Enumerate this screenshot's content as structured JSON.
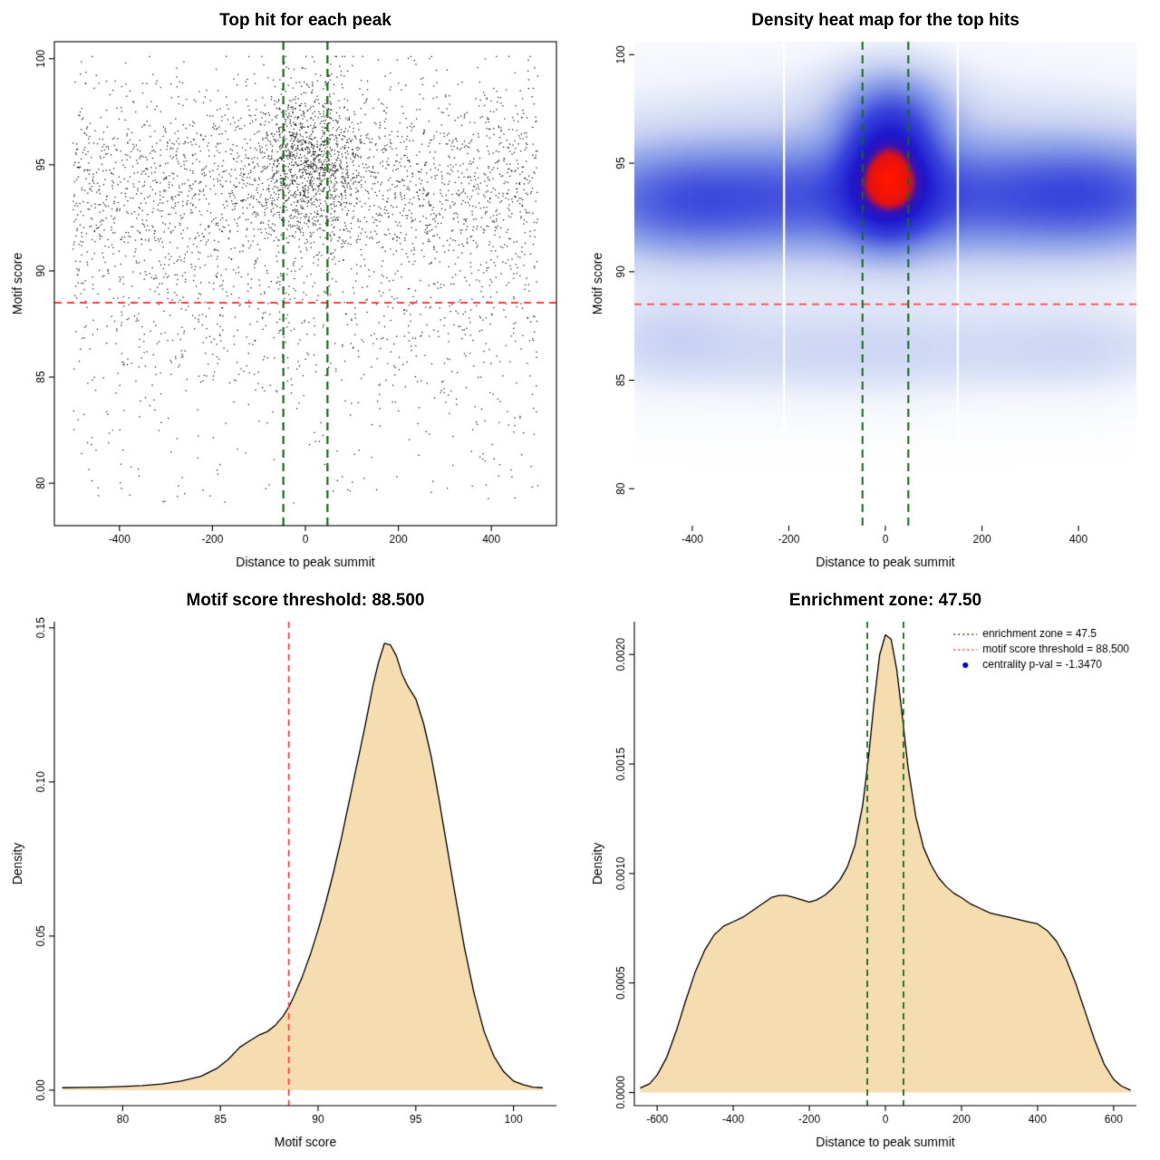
{
  "figure": {
    "background": "#ffffff"
  },
  "chart_data": [
    {
      "type": "scatter",
      "frame": "box",
      "title": "Top hit for each peak",
      "xlabel": "Distance to peak summit",
      "ylabel": "Motif score",
      "xlim": [
        -540,
        540
      ],
      "ylim": [
        78,
        100.8
      ],
      "xticks": [
        {
          "v": -400,
          "l": "-400"
        },
        {
          "v": -200,
          "l": "-200"
        },
        {
          "v": 0,
          "l": "0"
        },
        {
          "v": 200,
          "l": "200"
        },
        {
          "v": 400,
          "l": "400"
        }
      ],
      "yticks": [
        {
          "v": 80,
          "l": "80"
        },
        {
          "v": 85,
          "l": "85"
        },
        {
          "v": 90,
          "l": "90"
        },
        {
          "v": 95,
          "l": "95"
        },
        {
          "v": 100,
          "l": "100"
        }
      ],
      "hline": {
        "y": 88.5,
        "color": "#ff4040",
        "width": 2,
        "dash": [
          8,
          6
        ]
      },
      "vlines": {
        "xs": [
          -47.5,
          47.5
        ],
        "color": "#166b16",
        "width": 2.2,
        "dash": [
          9,
          6
        ]
      },
      "points": {
        "n": 4300,
        "seed": 20240807,
        "size": 1.3,
        "alpha": 0.85,
        "color": "#000000",
        "xclamp": [
          -503,
          503
        ],
        "yclamp": [
          78.6,
          100.1
        ],
        "components": [
          {
            "w": 0.52,
            "x": {
              "dist": "uniform",
              "a": -500,
              "b": 500
            },
            "y": {
              "dist": "normal",
              "m": 93.9,
              "s": 2.4
            }
          },
          {
            "w": 0.25,
            "x": {
              "dist": "normal",
              "m": 5,
              "s": 60
            },
            "y": {
              "dist": "normal",
              "m": 95.2,
              "s": 1.8
            }
          },
          {
            "w": 0.11,
            "x": {
              "dist": "uniform",
              "a": -500,
              "b": 500
            },
            "y": {
              "dist": "normal",
              "m": 87.2,
              "s": 2.1
            }
          },
          {
            "w": 0.12,
            "x": {
              "dist": "uniform",
              "a": -500,
              "b": 500
            },
            "y": {
              "dist": "uniform",
              "a": 79,
              "b": 100
            }
          }
        ]
      }
    },
    {
      "type": "heatmap",
      "frame": "none",
      "title": "Density heat map for the top hits",
      "xlabel": "Distance to peak summit",
      "ylabel": "Motif score",
      "xlim": [
        -520,
        520
      ],
      "ylim": [
        78.3,
        100.6
      ],
      "xticks": [
        {
          "v": -400,
          "l": "-400"
        },
        {
          "v": -200,
          "l": "-200"
        },
        {
          "v": 0,
          "l": "0"
        },
        {
          "v": 200,
          "l": "200"
        },
        {
          "v": 400,
          "l": "400"
        }
      ],
      "yticks": [
        {
          "v": 80,
          "l": "80"
        },
        {
          "v": 85,
          "l": "85"
        },
        {
          "v": 90,
          "l": "90"
        },
        {
          "v": 95,
          "l": "95"
        },
        {
          "v": 100,
          "l": "100"
        }
      ],
      "hline": {
        "y": 88.5,
        "color": "#ff5a5a",
        "width": 1.8,
        "dash": [
          8,
          6
        ]
      },
      "vlines": {
        "xs": [
          -47.5,
          47.5
        ],
        "color": "#166b16",
        "width": 2,
        "dash": [
          9,
          6
        ]
      },
      "gamma": 0.5,
      "white_lines": [
        -210,
        150
      ],
      "kernels": [
        {
          "w": 1.6,
          "mx": 8,
          "sx": 58,
          "my": 94.4,
          "sy": 1.7
        },
        {
          "w": 0.5,
          "mx": 15,
          "sx": 80,
          "my": 97.3,
          "sy": 1.4
        },
        {
          "w": 0.65,
          "mx": 0,
          "sx": 270,
          "my": 93.4,
          "sy": 1.6
        },
        {
          "w": 0.55,
          "mx": -430,
          "sx": 150,
          "my": 93.2,
          "sy": 1.6
        },
        {
          "w": 0.6,
          "mx": 440,
          "sx": 150,
          "my": 93.5,
          "sy": 1.6
        },
        {
          "w": 0.22,
          "mx": 0,
          "sx": 480,
          "my": 94.2,
          "sy": 2.8
        },
        {
          "w": 0.15,
          "mx": -60,
          "sx": 330,
          "my": 86.4,
          "sy": 1.4
        },
        {
          "w": 0.1,
          "mx": -450,
          "sx": 100,
          "my": 87.0,
          "sy": 1.3
        },
        {
          "w": 0.09,
          "mx": 420,
          "sx": 130,
          "my": 86.5,
          "sy": 1.2
        }
      ],
      "colormap": [
        [
          0,
          "#ffffff"
        ],
        [
          0.12,
          "#f2f5fc"
        ],
        [
          0.28,
          "#c6d0f2"
        ],
        [
          0.45,
          "#7e93e6"
        ],
        [
          0.62,
          "#3a46dc"
        ],
        [
          0.78,
          "#1d18cf"
        ],
        [
          0.86,
          "#3812b4"
        ],
        [
          0.92,
          "#e21212"
        ],
        [
          1,
          "#ff1400"
        ]
      ]
    },
    {
      "type": "density",
      "frame": "L",
      "title": "Motif score threshold: 88.500",
      "xlabel": "Motif score",
      "ylabel": "Density",
      "xlim": [
        76.5,
        102.2
      ],
      "ylim": [
        -0.005,
        0.152
      ],
      "xticks": [
        {
          "v": 80,
          "l": "80"
        },
        {
          "v": 85,
          "l": "85"
        },
        {
          "v": 90,
          "l": "90"
        },
        {
          "v": 95,
          "l": "95"
        },
        {
          "v": 100,
          "l": "100"
        }
      ],
      "yticks": [
        {
          "v": 0,
          "l": "0.00"
        },
        {
          "v": 0.05,
          "l": "0.05"
        },
        {
          "v": 0.1,
          "l": "0.10"
        },
        {
          "v": 0.15,
          "l": "0.15"
        }
      ],
      "fill": "#f5ddb0",
      "stroke": "#000000",
      "vlines": {
        "xs": [
          88.5
        ],
        "color": "#ff4040",
        "width": 1.8,
        "dash": [
          7,
          5
        ]
      },
      "curve": {
        "x": [
          76.9,
          78,
          79,
          80,
          81,
          82,
          83,
          84,
          84.8,
          85.4,
          86,
          86.5,
          87,
          87.4,
          87.8,
          88.2,
          88.5,
          88.8,
          89.2,
          89.6,
          90,
          90.4,
          90.8,
          91.2,
          91.6,
          92,
          92.4,
          92.8,
          93.1,
          93.4,
          93.7,
          94,
          94.3,
          94.6,
          95,
          95.4,
          95.8,
          96.2,
          96.6,
          97,
          97.5,
          98,
          98.5,
          99,
          99.5,
          100,
          100.5,
          101,
          101.5
        ],
        "y": [
          0.0008,
          0.0009,
          0.001,
          0.0012,
          0.0015,
          0.002,
          0.003,
          0.0045,
          0.007,
          0.01,
          0.014,
          0.016,
          0.018,
          0.019,
          0.021,
          0.024,
          0.027,
          0.031,
          0.037,
          0.044,
          0.052,
          0.061,
          0.071,
          0.082,
          0.094,
          0.106,
          0.118,
          0.131,
          0.139,
          0.145,
          0.1445,
          0.141,
          0.135,
          0.131,
          0.127,
          0.119,
          0.108,
          0.094,
          0.079,
          0.064,
          0.046,
          0.031,
          0.019,
          0.011,
          0.006,
          0.003,
          0.0018,
          0.001,
          0.0008
        ]
      }
    },
    {
      "type": "density",
      "frame": "L",
      "title": "Enrichment zone: 47.50",
      "xlabel": "Distance to peak summit",
      "ylabel": "Density",
      "xlim": [
        -660,
        660
      ],
      "ylim": [
        -6e-05,
        0.00215
      ],
      "xticks": [
        {
          "v": -600,
          "l": "-600"
        },
        {
          "v": -400,
          "l": "-400"
        },
        {
          "v": -200,
          "l": "-200"
        },
        {
          "v": 0,
          "l": "0"
        },
        {
          "v": 200,
          "l": "200"
        },
        {
          "v": 400,
          "l": "400"
        },
        {
          "v": 600,
          "l": "600"
        }
      ],
      "yticks": [
        {
          "v": 0,
          "l": "0.0000"
        },
        {
          "v": 0.0005,
          "l": "0.0005"
        },
        {
          "v": 0.001,
          "l": "0.0010"
        },
        {
          "v": 0.0015,
          "l": "0.0015"
        },
        {
          "v": 0.002,
          "l": "0.0020"
        }
      ],
      "fill": "#f5ddb0",
      "stroke": "#000000",
      "vlines": {
        "xs": [
          -47.5,
          47.5
        ],
        "color": "#166b16",
        "width": 1.8,
        "dash": [
          7,
          5
        ]
      },
      "legend": [
        {
          "kind": "line",
          "color": "#166b16",
          "label": "enrichment zone = 47.5"
        },
        {
          "kind": "line",
          "color": "#ff4040",
          "label": "motif score threshold = 88.500"
        },
        {
          "kind": "point",
          "color": "#0000cc",
          "label": "centrality p-val = -1.3470"
        }
      ],
      "curve": {
        "x": [
          -645,
          -620,
          -600,
          -575,
          -550,
          -525,
          -500,
          -475,
          -450,
          -425,
          -400,
          -375,
          -350,
          -325,
          -300,
          -280,
          -260,
          -240,
          -220,
          -200,
          -180,
          -160,
          -140,
          -120,
          -100,
          -80,
          -60,
          -45,
          -30,
          -15,
          0,
          15,
          30,
          45,
          60,
          80,
          100,
          120,
          140,
          160,
          180,
          200,
          225,
          250,
          275,
          300,
          325,
          350,
          375,
          400,
          425,
          450,
          475,
          500,
          525,
          550,
          575,
          600,
          620,
          645
        ],
        "y": [
          2e-05,
          4e-05,
          8e-05,
          0.00016,
          0.00028,
          0.00042,
          0.00055,
          0.00065,
          0.00072,
          0.00076,
          0.00078,
          0.0008,
          0.00083,
          0.00086,
          0.00089,
          0.0009,
          0.0009,
          0.00089,
          0.00088,
          0.00087,
          0.00088,
          0.0009,
          0.00093,
          0.00097,
          0.00103,
          0.00113,
          0.00131,
          0.00152,
          0.00178,
          0.002,
          0.00209,
          0.00207,
          0.00193,
          0.00171,
          0.00148,
          0.00126,
          0.00112,
          0.00104,
          0.00098,
          0.00094,
          0.00091,
          0.00089,
          0.00086,
          0.00084,
          0.00082,
          0.00081,
          0.0008,
          0.00079,
          0.00078,
          0.00077,
          0.00074,
          0.00069,
          0.00061,
          0.0005,
          0.00037,
          0.00024,
          0.00013,
          6e-05,
          3e-05,
          1e-05
        ]
      }
    }
  ]
}
